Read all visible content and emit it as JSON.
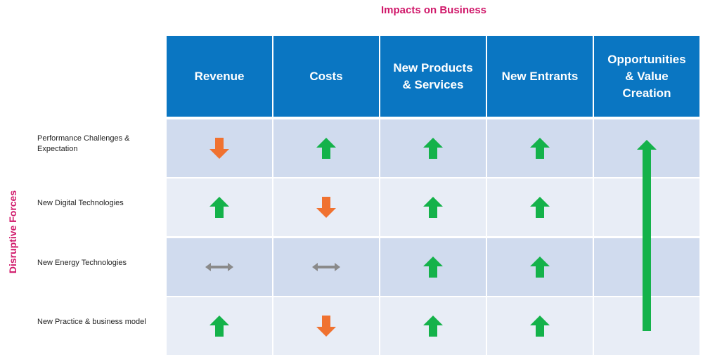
{
  "titles": {
    "impacts": "Impacts on Business",
    "forces": "Disruptive Forces"
  },
  "columns": [
    {
      "label": "Revenue"
    },
    {
      "label": "Costs"
    },
    {
      "label": "New Products\n& Services"
    },
    {
      "label": "New Entrants"
    },
    {
      "label": "Opportunities\n& Value\nCreation"
    }
  ],
  "rows": [
    {
      "label": "Performance Challenges &\nExpectation",
      "impacts": [
        "down",
        "up",
        "up",
        "up"
      ]
    },
    {
      "label": "New Digital Technologies",
      "impacts": [
        "up",
        "down",
        "up",
        "up"
      ]
    },
    {
      "label": "New Energy Technologies",
      "impacts": [
        "neutral",
        "neutral",
        "up",
        "up"
      ]
    },
    {
      "label": "New Practice & business model",
      "impacts": [
        "up",
        "down",
        "up",
        "up"
      ]
    }
  ],
  "colors": {
    "up": "#14b24a",
    "down": "#f07230",
    "neutral": "#8a8a8a",
    "header": "#0a76c2",
    "accent": "#d0186a"
  },
  "icons": {
    "up": "arrow-up-icon",
    "down": "arrow-down-icon",
    "neutral": "arrow-left-right-icon"
  },
  "opportunities_arrow": "arrow-up-icon"
}
